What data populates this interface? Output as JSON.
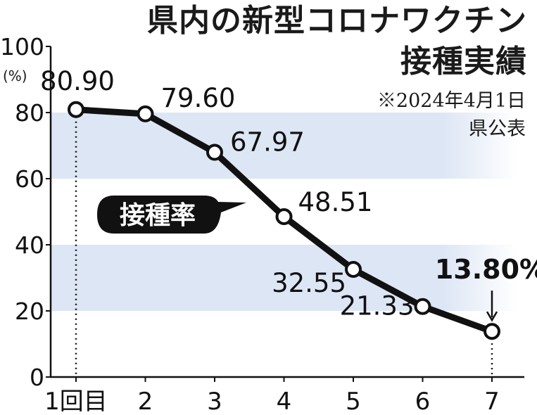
{
  "title_line1": "県内の新型コロナワクチン",
  "title_line2": "接種実績",
  "note_line1": "※2024年4月1日",
  "note_line2": "県公表",
  "chart_data": {
    "type": "line",
    "title": "県内の新型コロナワクチン接種実績",
    "xlabel": "",
    "ylabel": "(%)",
    "ylim": [
      0,
      100
    ],
    "yticks": [
      0,
      20,
      40,
      60,
      80,
      100
    ],
    "categories": [
      "1回目",
      "2",
      "3",
      "4",
      "5",
      "6",
      "7"
    ],
    "series": [
      {
        "name": "接種率",
        "values": [
          80.9,
          79.6,
          67.97,
          48.51,
          32.55,
          21.33,
          13.8
        ]
      }
    ],
    "point_labels": [
      "80.90",
      "79.60",
      "67.97",
      "48.51",
      "32.55",
      "21.33",
      "13.80%"
    ],
    "grid": "alternating horizontal bands",
    "colors": {
      "line": "#111111",
      "band": "#dde6f5",
      "marker_fill": "#ffffff"
    }
  }
}
